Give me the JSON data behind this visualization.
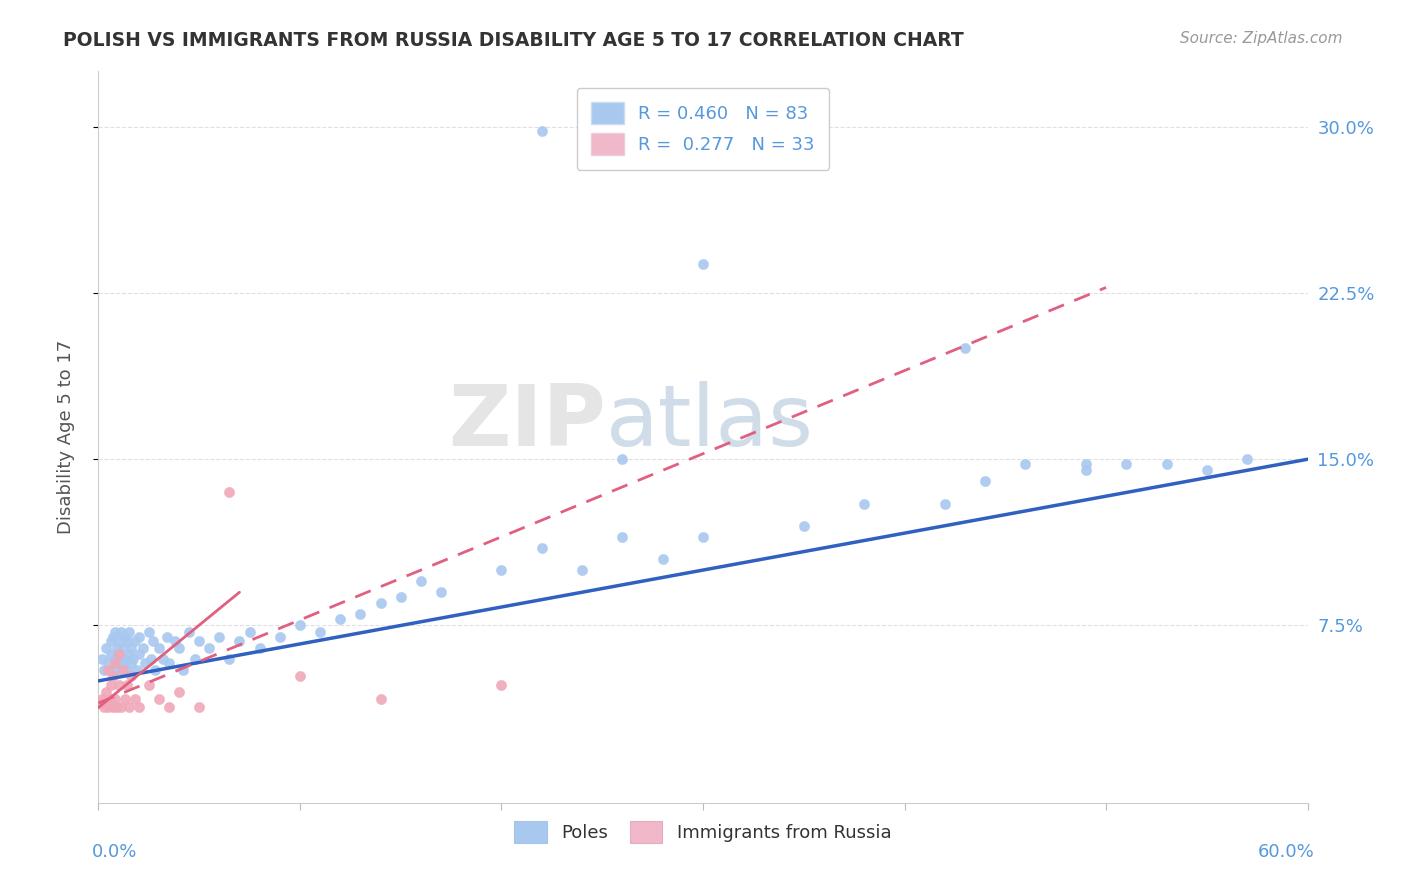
{
  "title": "POLISH VS IMMIGRANTS FROM RUSSIA DISABILITY AGE 5 TO 17 CORRELATION CHART",
  "source": "Source: ZipAtlas.com",
  "ylabel": "Disability Age 5 to 17",
  "ytick_vals": [
    0.075,
    0.15,
    0.225,
    0.3
  ],
  "xlim": [
    0.0,
    0.6
  ],
  "ylim": [
    -0.005,
    0.325
  ],
  "watermark_zip": "ZIP",
  "watermark_atlas": "atlas",
  "legend_blue_label": "R = 0.460   N = 83",
  "legend_pink_label": "R =  0.277   N = 33",
  "legend_bottom_poles": "Poles",
  "legend_bottom_russia": "Immigrants from Russia",
  "blue_scatter_color": "#a8c8f0",
  "pink_scatter_color": "#f0a8b8",
  "blue_line_color": "#3060c0",
  "pink_line_color": "#e06080",
  "blue_legend_color": "#a8c8f0",
  "pink_legend_color": "#f0b8c8",
  "axis_label_color": "#5599dd",
  "title_color": "#333333",
  "ylabel_color": "#555555",
  "grid_color": "#e0e0e0",
  "poles_x": [
    0.002,
    0.003,
    0.004,
    0.005,
    0.006,
    0.006,
    0.007,
    0.007,
    0.008,
    0.008,
    0.009,
    0.009,
    0.01,
    0.01,
    0.011,
    0.011,
    0.012,
    0.012,
    0.013,
    0.013,
    0.014,
    0.014,
    0.015,
    0.015,
    0.016,
    0.016,
    0.017,
    0.018,
    0.019,
    0.02,
    0.02,
    0.022,
    0.023,
    0.025,
    0.026,
    0.027,
    0.028,
    0.03,
    0.032,
    0.034,
    0.035,
    0.038,
    0.04,
    0.042,
    0.045,
    0.048,
    0.05,
    0.055,
    0.06,
    0.065,
    0.07,
    0.075,
    0.08,
    0.09,
    0.1,
    0.11,
    0.12,
    0.13,
    0.14,
    0.15,
    0.16,
    0.17,
    0.2,
    0.22,
    0.24,
    0.26,
    0.28,
    0.3,
    0.35,
    0.38,
    0.42,
    0.44,
    0.46,
    0.49,
    0.51,
    0.53,
    0.55,
    0.57,
    0.49,
    0.43,
    0.3,
    0.26,
    0.22
  ],
  "poles_y": [
    0.06,
    0.055,
    0.065,
    0.058,
    0.062,
    0.068,
    0.055,
    0.07,
    0.06,
    0.072,
    0.058,
    0.065,
    0.062,
    0.068,
    0.055,
    0.072,
    0.058,
    0.065,
    0.06,
    0.07,
    0.055,
    0.068,
    0.062,
    0.072,
    0.058,
    0.065,
    0.06,
    0.068,
    0.055,
    0.062,
    0.07,
    0.065,
    0.058,
    0.072,
    0.06,
    0.068,
    0.055,
    0.065,
    0.06,
    0.07,
    0.058,
    0.068,
    0.065,
    0.055,
    0.072,
    0.06,
    0.068,
    0.065,
    0.07,
    0.06,
    0.068,
    0.072,
    0.065,
    0.07,
    0.075,
    0.072,
    0.078,
    0.08,
    0.085,
    0.088,
    0.095,
    0.09,
    0.1,
    0.11,
    0.1,
    0.115,
    0.105,
    0.115,
    0.12,
    0.13,
    0.13,
    0.14,
    0.148,
    0.145,
    0.148,
    0.148,
    0.145,
    0.15,
    0.148,
    0.2,
    0.238,
    0.15,
    0.298
  ],
  "russia_x": [
    0.001,
    0.002,
    0.003,
    0.004,
    0.004,
    0.005,
    0.005,
    0.006,
    0.006,
    0.007,
    0.007,
    0.008,
    0.008,
    0.009,
    0.01,
    0.01,
    0.011,
    0.012,
    0.013,
    0.014,
    0.015,
    0.016,
    0.018,
    0.02,
    0.025,
    0.03,
    0.035,
    0.04,
    0.05,
    0.065,
    0.1,
    0.14,
    0.2
  ],
  "russia_y": [
    0.04,
    0.042,
    0.038,
    0.045,
    0.04,
    0.038,
    0.055,
    0.042,
    0.048,
    0.038,
    0.052,
    0.042,
    0.058,
    0.038,
    0.048,
    0.062,
    0.038,
    0.055,
    0.042,
    0.048,
    0.038,
    0.052,
    0.042,
    0.038,
    0.048,
    0.042,
    0.038,
    0.045,
    0.038,
    0.135,
    0.052,
    0.042,
    0.048
  ],
  "blue_line_x": [
    0.0,
    0.6
  ],
  "blue_line_y": [
    0.05,
    0.15
  ],
  "pink_line_x": [
    0.0,
    0.2
  ],
  "pink_line_y": [
    0.04,
    0.115
  ]
}
